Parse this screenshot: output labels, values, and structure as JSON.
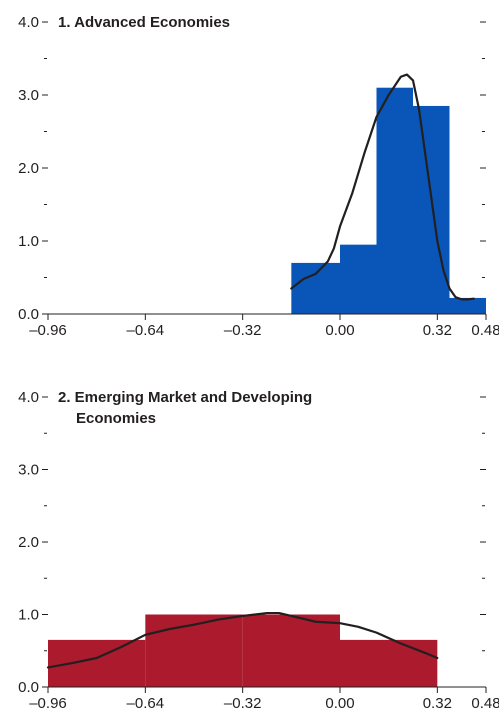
{
  "chart_data": [
    {
      "type": "bar",
      "title": "1. Advanced Economies",
      "title_lines": [
        "1. Advanced Economies"
      ],
      "xlim": [
        -0.96,
        0.48
      ],
      "ylim": [
        0,
        4.0
      ],
      "x_ticks": [
        "–0.96",
        "–0.64",
        "–0.32",
        "0.00",
        "0.32",
        "0.48"
      ],
      "y_ticks": [
        "0.0",
        "1.0",
        "2.0",
        "3.0",
        "4.0"
      ],
      "bar_color": "#0a56b8",
      "bins": [
        {
          "x0": -0.16,
          "x1": 0.0,
          "value": 0.7
        },
        {
          "x0": 0.0,
          "x1": 0.12,
          "value": 0.95
        },
        {
          "x0": 0.12,
          "x1": 0.24,
          "value": 3.1
        },
        {
          "x0": 0.24,
          "x1": 0.36,
          "value": 2.85
        },
        {
          "x0": 0.36,
          "x1": 0.48,
          "value": 0.22
        }
      ],
      "density": {
        "x": [
          -0.16,
          -0.12,
          -0.08,
          -0.04,
          -0.02,
          0.0,
          0.04,
          0.08,
          0.12,
          0.16,
          0.2,
          0.22,
          0.24,
          0.26,
          0.28,
          0.3,
          0.32,
          0.34,
          0.36,
          0.38,
          0.4,
          0.42,
          0.44
        ],
        "y": [
          0.35,
          0.48,
          0.55,
          0.72,
          0.9,
          1.2,
          1.65,
          2.2,
          2.7,
          3.0,
          3.25,
          3.28,
          3.2,
          2.8,
          2.2,
          1.6,
          1.0,
          0.6,
          0.35,
          0.23,
          0.2,
          0.2,
          0.21
        ]
      }
    },
    {
      "type": "bar",
      "title": "2. Emerging Market and Developing Economies",
      "title_lines": [
        "2. Emerging Market and Developing",
        "Economies"
      ],
      "xlim": [
        -0.96,
        0.48
      ],
      "ylim": [
        0,
        4.0
      ],
      "x_ticks": [
        "–0.96",
        "–0.64",
        "–0.32",
        "0.00",
        "0.32",
        "0.48"
      ],
      "y_ticks": [
        "0.0",
        "1.0",
        "2.0",
        "3.0",
        "4.0"
      ],
      "bar_color": "#ab1a2d",
      "bins": [
        {
          "x0": -0.96,
          "x1": -0.64,
          "value": 0.65
        },
        {
          "x0": -0.64,
          "x1": -0.32,
          "value": 1.0
        },
        {
          "x0": -0.32,
          "x1": 0.0,
          "value": 1.0
        },
        {
          "x0": 0.0,
          "x1": 0.32,
          "value": 0.65
        }
      ],
      "density": {
        "x": [
          -0.96,
          -0.88,
          -0.8,
          -0.72,
          -0.64,
          -0.56,
          -0.48,
          -0.4,
          -0.32,
          -0.24,
          -0.2,
          -0.16,
          -0.08,
          0.0,
          0.06,
          0.12,
          0.2,
          0.28,
          0.32
        ],
        "y": [
          0.27,
          0.33,
          0.4,
          0.55,
          0.72,
          0.8,
          0.86,
          0.93,
          0.98,
          1.02,
          1.02,
          0.98,
          0.9,
          0.88,
          0.83,
          0.75,
          0.6,
          0.47,
          0.4
        ]
      }
    }
  ]
}
